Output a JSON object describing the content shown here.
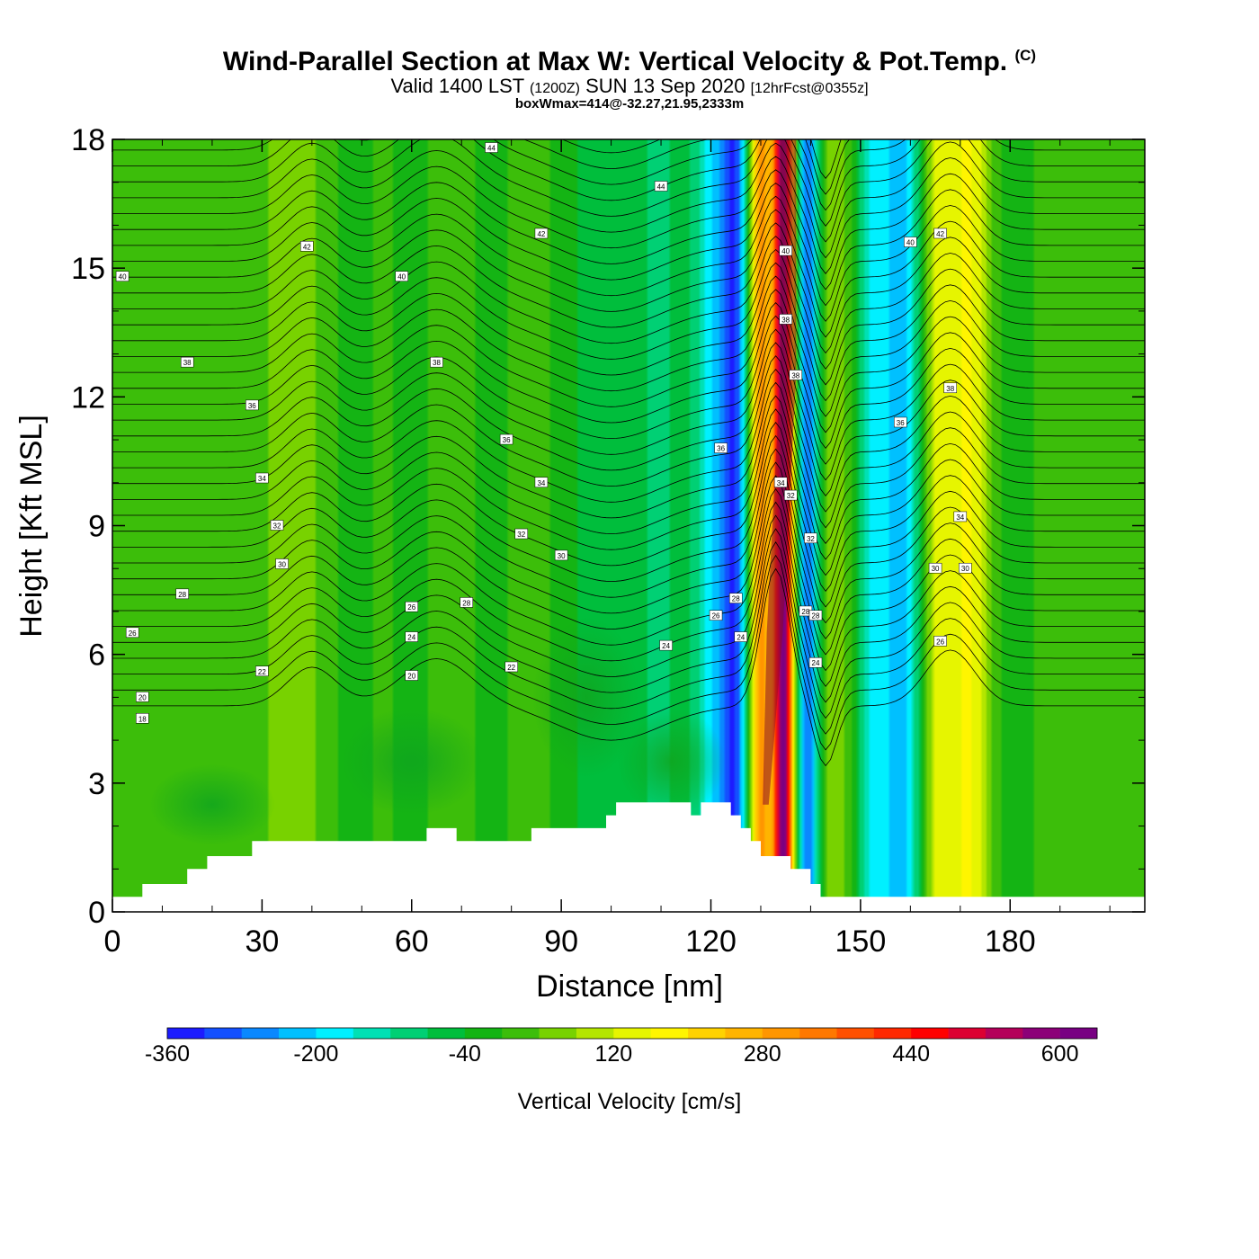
{
  "chart_data": {
    "type": "heatmap",
    "title": "Wind-Parallel Section at Max W: Vertical Velocity & Pot.Temp.",
    "title_mark": "(C)",
    "subtitle_main": "Valid 1400 LST",
    "subtitle_utc": "(1200Z)",
    "subtitle_date": "SUN 13 Sep 2020",
    "subtitle_fcst": "[12hrFcst@0355z]",
    "info": "boxWmax=414@-32.27,21.95,2333m",
    "xlabel": "Distance [nm]",
    "ylabel": "Height [Kft MSL]",
    "xlim": [
      0,
      207
    ],
    "ylim": [
      0,
      18
    ],
    "xticks": [
      0,
      30,
      60,
      90,
      120,
      150,
      180
    ],
    "yticks": [
      0,
      3,
      6,
      9,
      12,
      15,
      18
    ],
    "colorbar": {
      "label": "Vertical Velocity [cm/s]",
      "min": -360,
      "max": 640,
      "step": 40,
      "tick_labels": [
        "-360",
        "-200",
        "-40",
        "120",
        "280",
        "440",
        "600"
      ],
      "colors": [
        "#1c1cff",
        "#1450ff",
        "#0a88ff",
        "#00c0ff",
        "#00f0ff",
        "#00e0b4",
        "#00d074",
        "#00be3c",
        "#14b414",
        "#3cbe0a",
        "#78d200",
        "#b4e600",
        "#e6f500",
        "#fff500",
        "#ffd200",
        "#ffb400",
        "#ff9600",
        "#ff7800",
        "#ff5000",
        "#ff2800",
        "#ff0000",
        "#dc0032",
        "#b4005a",
        "#8c0078",
        "#780082"
      ]
    },
    "updraft_max_cm_s": 640,
    "updraft_center_nm": 134.5,
    "theta_labels_K": [
      "44",
      "44",
      "42",
      "42",
      "42",
      "40",
      "40",
      "40",
      "40",
      "38",
      "38",
      "38",
      "38",
      "38",
      "36",
      "36",
      "36",
      "36",
      "34",
      "34",
      "34",
      "34",
      "32",
      "32",
      "32",
      "32",
      "30",
      "30",
      "30",
      "30",
      "28",
      "28",
      "28",
      "28",
      "28",
      "26",
      "26",
      "26",
      "26",
      "24",
      "24",
      "24",
      "24",
      "22",
      "22",
      "20",
      "20",
      "18"
    ],
    "terrain": {
      "x_nm": [
        0,
        6,
        6,
        15,
        15,
        19,
        19,
        28,
        28,
        63,
        63,
        69,
        69,
        84,
        84,
        99,
        99,
        101,
        101,
        116,
        116,
        118,
        118,
        124,
        124,
        126,
        126,
        128,
        128,
        130,
        130,
        136,
        136,
        140,
        140,
        142,
        142,
        144,
        144,
        207
      ],
      "height_kft": [
        0.35,
        0.35,
        0.65,
        0.65,
        1.0,
        1.0,
        1.3,
        1.3,
        1.65,
        1.65,
        1.95,
        1.95,
        1.65,
        1.65,
        1.95,
        1.95,
        2.25,
        2.25,
        2.55,
        2.55,
        2.25,
        2.25,
        2.55,
        2.55,
        2.25,
        2.25,
        1.95,
        1.95,
        1.65,
        1.65,
        1.3,
        1.3,
        1.0,
        1.0,
        0.65,
        0.65,
        0.35,
        0.35,
        0.35,
        0.35
      ]
    }
  }
}
